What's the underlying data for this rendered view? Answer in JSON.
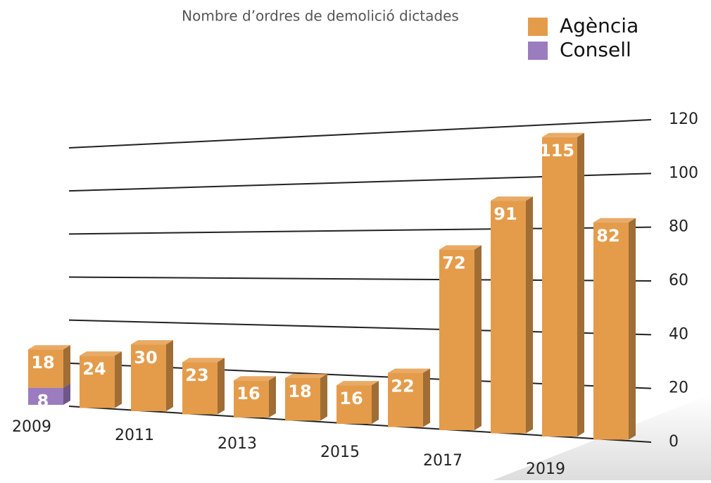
{
  "chart_data": {
    "type": "bar",
    "stacked": true,
    "title": "Nombre d’ordres de demolició dictades",
    "categories": [
      "2009",
      null,
      "2011",
      null,
      "2013",
      null,
      "2015",
      null,
      "2017",
      null,
      "2019",
      null
    ],
    "series": [
      {
        "name": "Consell",
        "color": "#9b7cbf",
        "values": [
          8,
          null,
          null,
          null,
          null,
          null,
          null,
          null,
          null,
          null,
          null,
          null
        ]
      },
      {
        "name": "Agència",
        "color": "#e49c4b",
        "values": [
          18,
          24,
          30,
          23,
          16,
          18,
          16,
          22,
          72,
          91,
          115,
          82
        ]
      }
    ],
    "ylim": [
      0,
      120
    ],
    "yticks": [
      0,
      20,
      40,
      60,
      80,
      100,
      120
    ],
    "grid": true,
    "legend": "top-right"
  }
}
